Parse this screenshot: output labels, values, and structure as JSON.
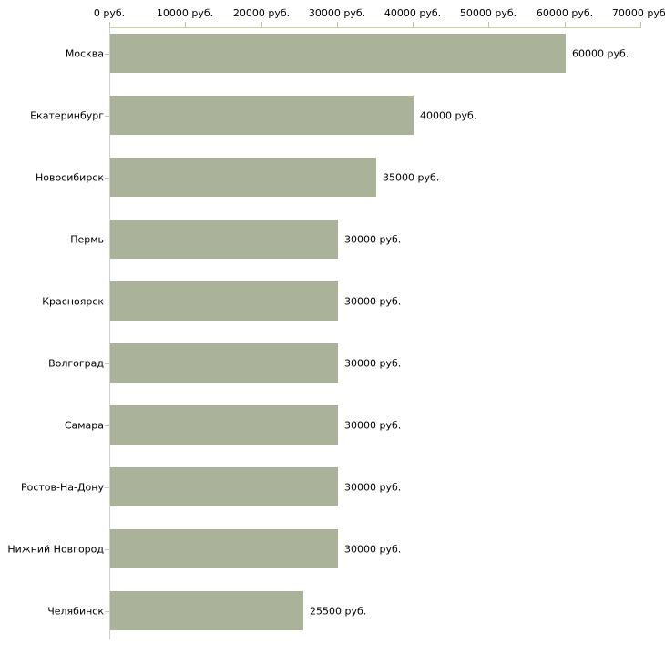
{
  "chart_data": {
    "type": "bar",
    "orientation": "horizontal",
    "title": "",
    "xlabel": "",
    "ylabel": "",
    "categories": [
      "Москва",
      "Екатеринбург",
      "Новосибирск",
      "Пермь",
      "Красноярск",
      "Волгоград",
      "Самара",
      "Ростов-На-Дону",
      "Нижний Новгород",
      "Челябинск"
    ],
    "values": [
      60000,
      40000,
      35000,
      30000,
      30000,
      30000,
      30000,
      30000,
      30000,
      25500
    ],
    "value_labels": [
      "60000 руб.",
      "40000 руб.",
      "35000 руб.",
      "30000 руб.",
      "30000 руб.",
      "30000 руб.",
      "30000 руб.",
      "30000 руб.",
      "30000 руб.",
      "25500 руб."
    ],
    "x_tick_values": [
      0,
      10000,
      20000,
      30000,
      40000,
      50000,
      60000,
      70000
    ],
    "x_tick_labels": [
      "0 руб.",
      "10000 руб.",
      "20000 руб.",
      "30000 руб.",
      "40000 руб.",
      "50000 руб.",
      "60000 руб.",
      "70000 руб."
    ],
    "xlim": [
      0,
      70000
    ],
    "grid": false,
    "legend": false,
    "unit": "руб.",
    "colors": {
      "bar": "#aab399",
      "xaxis_line": "#cdcda6",
      "yaxis_line": "#cfcfcf",
      "xtick": "#c2c297",
      "ytick": "#c9c99e",
      "text": "#000000",
      "background": "#ffffff"
    }
  }
}
